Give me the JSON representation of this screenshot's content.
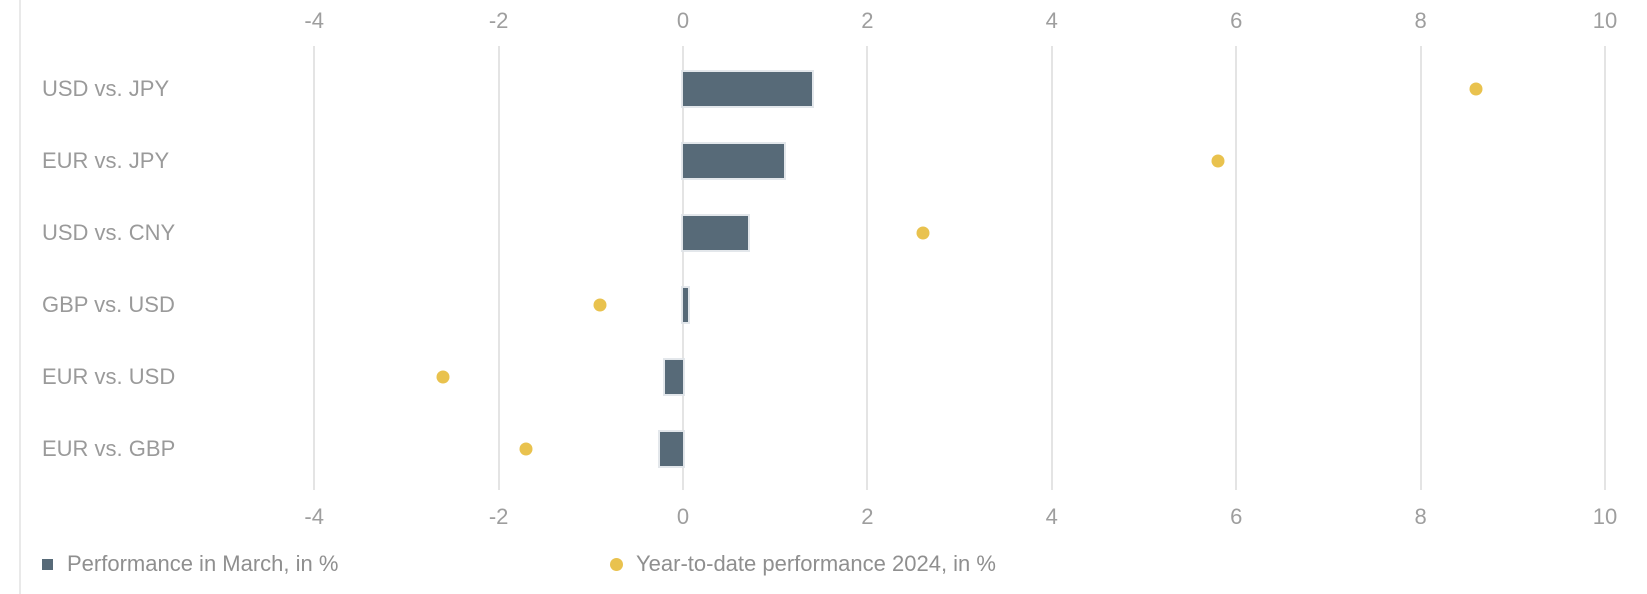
{
  "chart_data": {
    "type": "bar",
    "orientation": "horizontal",
    "categories": [
      "USD vs. JPY",
      "EUR vs. JPY",
      "USD vs. CNY",
      "GBP vs. USD",
      "EUR vs. USD",
      "EUR vs. GBP"
    ],
    "series": [
      {
        "name": "Performance in March, in %",
        "type": "bar",
        "color": "#576a78",
        "values": [
          1.4,
          1.1,
          0.7,
          0.05,
          -0.2,
          -0.25
        ]
      },
      {
        "name": "Year-to-date performance 2024, in %",
        "type": "scatter",
        "color": "#e9c24e",
        "values": [
          8.6,
          5.8,
          2.6,
          -0.9,
          -2.6,
          -1.7
        ]
      }
    ],
    "title": "",
    "xlabel": "",
    "ylabel": "",
    "xlim": [
      -4.3,
      10.4
    ],
    "x_ticks": [
      -4,
      -2,
      0,
      2,
      4,
      6,
      8,
      10
    ],
    "tick_labels_position": "top and bottom",
    "grid": "vertical",
    "legend_position": "bottom"
  },
  "colors": {
    "bar": "#576a78",
    "dot": "#e9c24e",
    "gridline": "#e4e4e4",
    "axis_text": "#9e9e9e",
    "category_text": "#9a9a9a",
    "legend_text": "#8f8f8f",
    "background": "#ffffff"
  }
}
